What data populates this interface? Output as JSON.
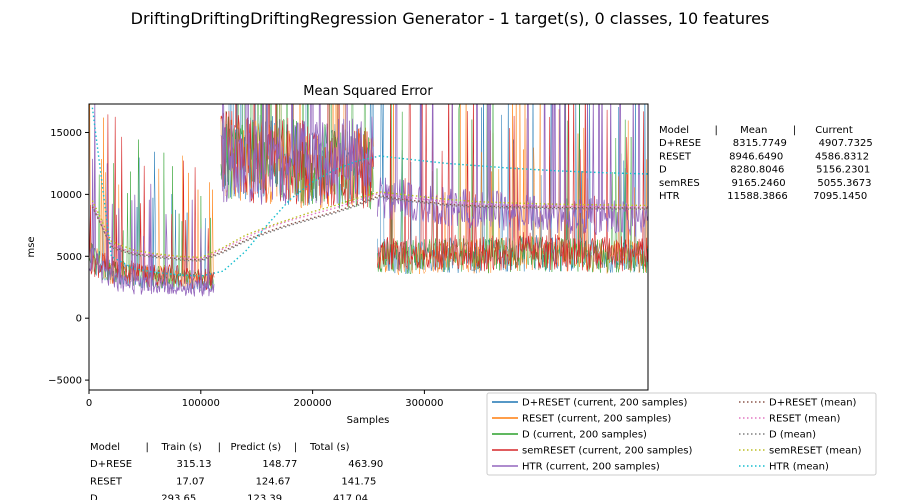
{
  "figure": {
    "suptitle": "DriftingDriftingDriftingRegression Generator - 1 target(s), 0 classes, 10 features"
  },
  "chart_data": {
    "type": "line",
    "title": "Mean Squared Error",
    "xlabel": "Samples",
    "ylabel": "mse",
    "xlim": [
      0,
      500000
    ],
    "ylim": [
      -5800,
      17300
    ],
    "xticks": [
      0,
      100000,
      200000,
      300000
    ],
    "xtick_labels": [
      "0",
      "100000",
      "200000",
      "300000"
    ],
    "yticks": [
      -5000,
      0,
      5000,
      10000,
      15000
    ],
    "ytick_labels": [
      "−5000",
      "0",
      "5000",
      "10000",
      "15000"
    ],
    "grid": false,
    "legend_position": "lower-right",
    "series": [
      {
        "name": "D+RESET  (current, 200 samples)",
        "style": "solid",
        "color": "#1f77b4",
        "segments": [
          {
            "x": [
              0,
              20000,
              40000,
              60000,
              80000,
              100000,
              112000
            ],
            "y": [
              5200,
              3700,
              3400,
              3300,
              3200,
              3000,
              2800
            ]
          },
          {
            "x": [
              118000,
              140000,
              170000,
              200000,
              230000,
              255000
            ],
            "y": [
              13500,
              13200,
              12800,
              12500,
              12300,
              12200
            ]
          },
          {
            "x": [
              258000,
              280000,
              300000,
              320000,
              350000,
              380000,
              400000,
              420000,
              450000,
              480000,
              500000
            ],
            "y": [
              5200,
              4900,
              5000,
              5100,
              5000,
              5200,
              5300,
              5100,
              5000,
              5000,
              5000
            ]
          }
        ]
      },
      {
        "name": "RESET  (current, 200 samples)",
        "style": "solid",
        "color": "#ff7f0e",
        "segments": [
          {
            "x": [
              0,
              20000,
              40000,
              60000,
              80000,
              100000,
              112000
            ],
            "y": [
              5000,
              3800,
              3500,
              3400,
              3300,
              3100,
              2900
            ]
          },
          {
            "x": [
              118000,
              140000,
              170000,
              200000,
              230000,
              255000
            ],
            "y": [
              13000,
              12800,
              12500,
              12300,
              12200,
              12000
            ]
          },
          {
            "x": [
              258000,
              280000,
              300000,
              320000,
              350000,
              380000,
              400000,
              420000,
              450000,
              480000,
              500000
            ],
            "y": [
              5100,
              4800,
              4900,
              5000,
              5000,
              5100,
              5200,
              5000,
              4900,
              5000,
              5000
            ]
          }
        ]
      },
      {
        "name": "D  (current, 200 samples)",
        "style": "solid",
        "color": "#2ca02c",
        "segments": [
          {
            "x": [
              0,
              20000,
              40000,
              60000,
              80000,
              100000,
              112000
            ],
            "y": [
              5100,
              3700,
              3500,
              3300,
              3200,
              3000,
              2900
            ]
          },
          {
            "x": [
              118000,
              140000,
              170000,
              200000,
              230000,
              255000
            ],
            "y": [
              13200,
              13000,
              12700,
              12400,
              12200,
              12100
            ]
          },
          {
            "x": [
              258000,
              280000,
              300000,
              320000,
              350000,
              380000,
              400000,
              420000,
              450000,
              480000,
              500000
            ],
            "y": [
              5200,
              4900,
              5000,
              5100,
              5000,
              5200,
              5300,
              5100,
              5000,
              5000,
              5000
            ]
          }
        ]
      },
      {
        "name": "semRESET  (current, 200 samples)",
        "style": "solid",
        "color": "#d62728",
        "segments": [
          {
            "x": [
              0,
              20000,
              40000,
              60000,
              80000,
              100000,
              112000
            ],
            "y": [
              4900,
              3900,
              3700,
              3500,
              3400,
              3200,
              3000
            ]
          },
          {
            "x": [
              118000,
              140000,
              170000,
              200000,
              230000,
              255000
            ],
            "y": [
              13200,
              13000,
              12700,
              12500,
              12300,
              12200
            ]
          },
          {
            "x": [
              258000,
              280000,
              300000,
              320000,
              350000,
              380000,
              400000,
              420000,
              450000,
              480000,
              500000
            ],
            "y": [
              5500,
              5200,
              5300,
              5300,
              5200,
              5400,
              5500,
              5300,
              5200,
              5200,
              5200
            ]
          }
        ]
      },
      {
        "name": "HTR  (current, 200 samples)",
        "style": "solid",
        "color": "#9467bd",
        "segments": [
          {
            "x": [
              0,
              20000,
              40000,
              60000,
              80000,
              100000,
              112000
            ],
            "y": [
              5000,
              3000,
              2700,
              2600,
              2500,
              2400,
              2300
            ]
          },
          {
            "x": [
              118000,
              140000,
              170000,
              200000,
              230000,
              255000
            ],
            "y": [
              12000,
              12500,
              12800,
              12600,
              12800,
              12700
            ]
          },
          {
            "x": [
              258000,
              280000,
              300000,
              320000,
              350000,
              380000,
              400000,
              420000,
              450000,
              480000,
              500000
            ],
            "y": [
              10000,
              9500,
              9200,
              9000,
              8800,
              8600,
              8400,
              8300,
              8200,
              8100,
              8000
            ]
          }
        ]
      },
      {
        "name": "D+RESET (mean)",
        "style": "dotted",
        "color": "#8c564b",
        "x": [
          3000,
          20000,
          40000,
          60000,
          80000,
          100000,
          120000,
          140000,
          160000,
          180000,
          200000,
          220000,
          240000,
          260000,
          280000,
          300000,
          320000,
          350000,
          380000,
          420000,
          460000,
          500000
        ],
        "y": [
          9000,
          5800,
          5200,
          5000,
          4800,
          4700,
          5400,
          6300,
          7000,
          7600,
          8100,
          8600,
          9200,
          9900,
          9600,
          9400,
          9200,
          9050,
          9000,
          8950,
          8920,
          8900
        ]
      },
      {
        "name": "RESET (mean)",
        "style": "dotted",
        "color": "#e377c2",
        "x": [
          3000,
          20000,
          40000,
          60000,
          80000,
          100000,
          120000,
          140000,
          160000,
          180000,
          200000,
          220000,
          240000,
          260000,
          280000,
          300000,
          320000,
          350000,
          380000,
          420000,
          460000,
          500000
        ],
        "y": [
          9300,
          5900,
          5300,
          5100,
          4900,
          4800,
          5600,
          6500,
          7300,
          7900,
          8400,
          8900,
          9500,
          10100,
          9800,
          9600,
          9400,
          9200,
          9100,
          9050,
          9000,
          9000
        ]
      },
      {
        "name": "D (mean)",
        "style": "dotted",
        "color": "#7f7f7f",
        "x": [
          3000,
          20000,
          40000,
          60000,
          80000,
          100000,
          120000,
          140000,
          160000,
          180000,
          200000,
          220000,
          240000,
          260000,
          280000,
          300000,
          320000,
          350000,
          380000,
          420000,
          460000,
          500000
        ],
        "y": [
          9100,
          5700,
          5100,
          4900,
          4700,
          4600,
          5300,
          6200,
          6900,
          7500,
          8000,
          8500,
          9100,
          9800,
          9500,
          9300,
          9100,
          8950,
          8900,
          8850,
          8820,
          8800
        ]
      },
      {
        "name": "semRESET (mean)",
        "style": "dotted",
        "color": "#bcbd22",
        "x": [
          3000,
          20000,
          40000,
          60000,
          80000,
          100000,
          120000,
          140000,
          160000,
          180000,
          200000,
          220000,
          240000,
          260000,
          280000,
          300000,
          320000,
          350000,
          380000,
          420000,
          460000,
          500000
        ],
        "y": [
          9500,
          6200,
          5500,
          5200,
          5000,
          4900,
          5700,
          6700,
          7400,
          8000,
          8600,
          9100,
          9700,
          10200,
          10000,
          9800,
          9600,
          9400,
          9300,
          9200,
          9150,
          9100
        ]
      },
      {
        "name": "HTR (mean)",
        "style": "dotted",
        "color": "#17becf",
        "x": [
          3000,
          20000,
          40000,
          60000,
          80000,
          100000,
          120000,
          140000,
          160000,
          180000,
          200000,
          220000,
          240000,
          260000,
          280000,
          300000,
          320000,
          350000,
          380000,
          420000,
          460000,
          500000
        ],
        "y": [
          17000,
          5000,
          4000,
          3700,
          3500,
          3400,
          3800,
          5400,
          7600,
          9600,
          11000,
          12000,
          12700,
          13100,
          12900,
          12700,
          12500,
          12300,
          12100,
          11900,
          11750,
          11650
        ]
      }
    ]
  },
  "summary_table": {
    "header": "Model        |       Mean        |      Current",
    "rows": [
      "D+RESE          8315.7749          4907.7325",
      "RESET            8946.6490          4586.8312",
      "D                    8280.8046          5156.2301",
      "semRES          9165.2460          5055.3673",
      "HTR               11588.3866        7095.1450"
    ]
  },
  "timing_table": {
    "header": "Model        |    Train (s)     |   Predict (s)    |    Total (s)",
    "rows": [
      "D+RESE              315.13                148.77                463.90",
      "RESET                 17.07                124.67                141.75",
      "D                    293.65                123.39                417.04"
    ]
  }
}
